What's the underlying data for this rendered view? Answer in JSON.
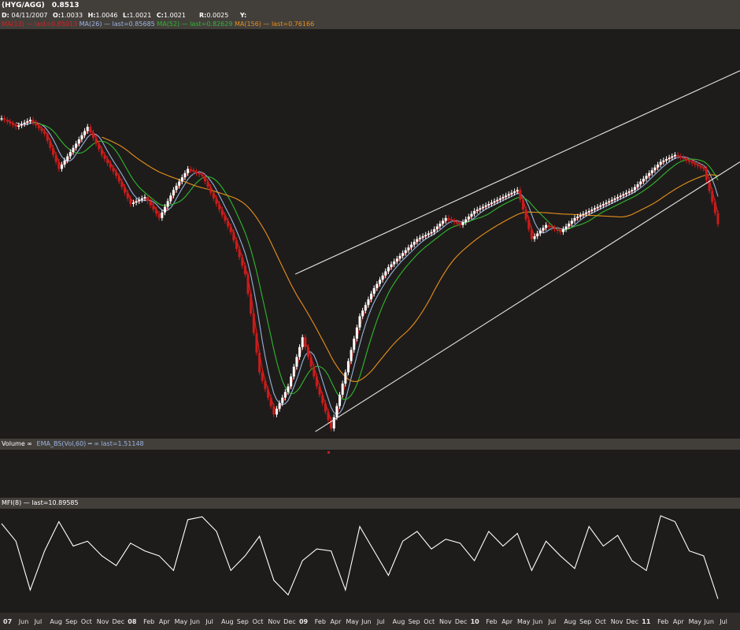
{
  "header": {
    "symbol": "(HYG/AGG)",
    "price": "0.8513",
    "d_label": "D:",
    "date": "04/11/2007",
    "o_label": "O:",
    "open": "1.0033",
    "h_label": "H:",
    "high": "1.0046",
    "l_label": "L:",
    "low": "1.0021",
    "c_label": "C:",
    "close": "1.0021",
    "r_label": "R:",
    "r_value": "0.0025",
    "y_label": "Y:"
  },
  "indicators": [
    {
      "text": "MA(13) — last=0.85013",
      "color": "#d42020"
    },
    {
      "text": "MA(26) — last=0.85685",
      "color": "#9ab3e0"
    },
    {
      "text": "MA(52) — last=0.82629",
      "color": "#2fb82f"
    },
    {
      "text": "MA(156) — last=0.76166",
      "color": "#e8901c"
    }
  ],
  "volume_label": "Volume ∞",
  "volume_indicator": "EMA_BS(Vol,60) ━ ∞ last=1.51148",
  "mfi_label": "MFI(8) — last=10.89585",
  "colors": {
    "background": "#1e1c1a",
    "panel_bar": "#423f3b",
    "up_candle": "#ffffff",
    "down_candle": "#cc1b1b",
    "ma13": "#d42020",
    "ma26": "#9ab3e0",
    "ma52": "#2fb82f",
    "ma156": "#e8901c",
    "trendline": "#e6e6e6",
    "mfi": "#ffffff"
  },
  "chart_data": {
    "type": "line",
    "series": [
      {
        "name": "(HYG/AGG)",
        "x": [
          "2007-04-11",
          "2007-05",
          "2007-06",
          "2007-07",
          "2007-08",
          "2007-09",
          "2007-10",
          "2007-11",
          "2007-12",
          "2008-01",
          "2008-02",
          "2008-03",
          "2008-04",
          "2008-05",
          "2008-06",
          "2008-07",
          "2008-08",
          "2008-09",
          "2008-10",
          "2008-11",
          "2008-12",
          "2009-01",
          "2009-02",
          "2009-03",
          "2009-04",
          "2009-05",
          "2009-06",
          "2009-07",
          "2009-08",
          "2009-09",
          "2009-10",
          "2009-11",
          "2009-12",
          "2010-01",
          "2010-02",
          "2010-03",
          "2010-04",
          "2010-05",
          "2010-06",
          "2010-07",
          "2010-08",
          "2010-09",
          "2010-10",
          "2010-11",
          "2010-12",
          "2011-01",
          "2011-02",
          "2011-03",
          "2011-04",
          "2011-05",
          "2011-06"
        ],
        "values": [
          1.0021,
          0.99,
          1.0,
          0.98,
          0.93,
          0.96,
          0.99,
          0.95,
          0.92,
          0.88,
          0.89,
          0.86,
          0.9,
          0.93,
          0.92,
          0.88,
          0.84,
          0.78,
          0.64,
          0.58,
          0.62,
          0.69,
          0.62,
          0.56,
          0.64,
          0.72,
          0.76,
          0.79,
          0.81,
          0.83,
          0.84,
          0.86,
          0.85,
          0.87,
          0.88,
          0.89,
          0.9,
          0.83,
          0.85,
          0.84,
          0.86,
          0.87,
          0.88,
          0.89,
          0.9,
          0.92,
          0.94,
          0.95,
          0.94,
          0.93,
          0.8513
        ]
      },
      {
        "name": "MA(13)",
        "last": 0.85013
      },
      {
        "name": "MA(26)",
        "last": 0.85685
      },
      {
        "name": "MA(52)",
        "last": 0.82629
      },
      {
        "name": "MA(156)",
        "last": 0.76166
      },
      {
        "name": "MFI(8)",
        "last": 10.89585,
        "values": [
          88,
          70,
          20,
          60,
          90,
          65,
          70,
          55,
          45,
          68,
          60,
          55,
          40,
          92,
          95,
          80,
          40,
          55,
          75,
          30,
          15,
          50,
          62,
          60,
          20,
          85,
          60,
          35,
          70,
          80,
          62,
          72,
          68,
          50,
          80,
          65,
          78,
          40,
          70,
          55,
          42,
          85,
          65,
          76,
          50,
          40,
          96,
          90,
          60,
          55,
          10.9
        ]
      }
    ],
    "x_tick_labels": [
      "07",
      "Jun",
      "Jul",
      "Aug",
      "Sep",
      "Oct",
      "Nov",
      "Dec",
      "08",
      "Feb",
      "Apr",
      "May",
      "Jun",
      "Jul",
      "Aug",
      "Sep",
      "Oct",
      "Nov",
      "Dec",
      "09",
      "Feb",
      "Apr",
      "May",
      "Jun",
      "Jul",
      "Aug",
      "Sep",
      "Oct",
      "Nov",
      "Dec",
      "10",
      "Feb",
      "Apr",
      "May",
      "Jun",
      "Jul",
      "Aug",
      "Sep",
      "Oct",
      "Nov",
      "Dec",
      "11",
      "Feb",
      "Apr",
      "May",
      "Jun",
      "Jul"
    ],
    "bold_tick_labels": [
      "07",
      "08",
      "09",
      "10",
      "11"
    ],
    "grid": false
  }
}
